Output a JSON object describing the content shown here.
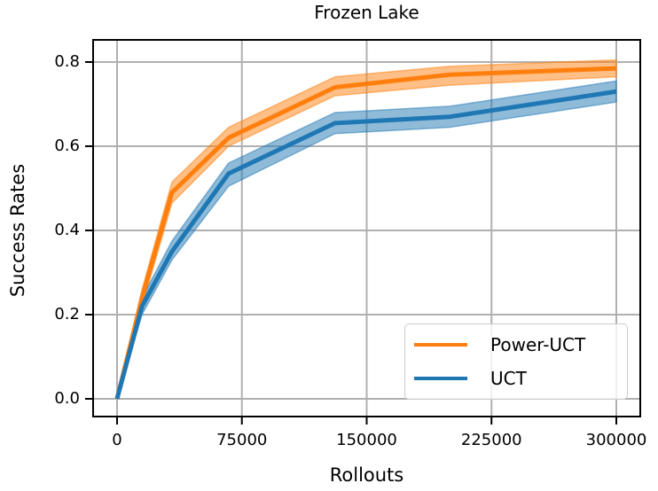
{
  "chart_data": {
    "type": "line",
    "title": "Frozen Lake",
    "xlabel": "Rollouts",
    "ylabel": "Success Rates",
    "xlim": [
      -16000,
      316000
    ],
    "ylim": [
      -0.04,
      0.855
    ],
    "xticks": [
      0,
      75000,
      150000,
      225000,
      300000
    ],
    "xtick_labels": [
      "0",
      "75000",
      "150000",
      "225000",
      "300000"
    ],
    "yticks": [
      0.0,
      0.2,
      0.4,
      0.6,
      0.8
    ],
    "ytick_labels": [
      "0.0",
      "0.2",
      "0.4",
      "0.6",
      "0.8"
    ],
    "grid": true,
    "legend_position": "lower right",
    "x": [
      0,
      15000,
      33000,
      67000,
      131000,
      200000,
      300000
    ],
    "series": [
      {
        "name": "Power-UCT",
        "color": "#ff7f0e",
        "values": [
          0.0,
          0.24,
          0.49,
          0.62,
          0.74,
          0.77,
          0.785
        ],
        "lower": [
          0.0,
          0.22,
          0.465,
          0.6,
          0.72,
          0.745,
          0.765
        ],
        "upper": [
          0.0,
          0.26,
          0.515,
          0.645,
          0.765,
          0.79,
          0.805
        ]
      },
      {
        "name": "UCT",
        "color": "#1f77b4",
        "values": [
          0.0,
          0.22,
          0.35,
          0.535,
          0.655,
          0.67,
          0.73
        ],
        "lower": [
          0.0,
          0.2,
          0.33,
          0.505,
          0.63,
          0.645,
          0.705
        ],
        "upper": [
          0.0,
          0.24,
          0.375,
          0.56,
          0.68,
          0.695,
          0.755
        ]
      }
    ]
  },
  "legend": {
    "items": [
      {
        "label": "Power-UCT",
        "color": "#ff7f0e"
      },
      {
        "label": "UCT",
        "color": "#1f77b4"
      }
    ]
  }
}
